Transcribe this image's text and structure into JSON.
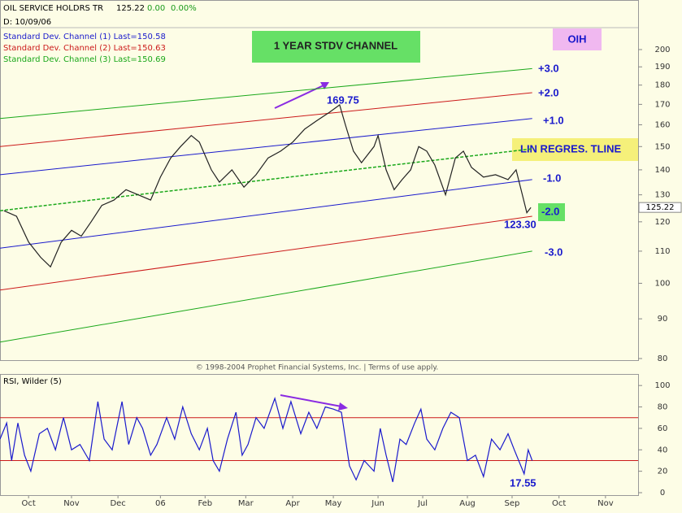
{
  "chart_data": [
    {
      "type": "line",
      "title": "OIL SERVICE HOLDRS TR",
      "last": "125.22",
      "change": "0.00",
      "change_pct": "0.00%",
      "date": "D: 10/09/06",
      "log_scale": true,
      "xlim": [
        -0.14,
        14.14
      ],
      "ylim": [
        80,
        230
      ],
      "yticks": [
        80,
        90,
        100,
        110,
        120,
        130,
        140,
        150,
        160,
        170,
        180,
        190,
        200
      ],
      "last_value": 125.22,
      "series": [
        {
          "color": "#222222",
          "x": [
            -0.05,
            0.23,
            0.5,
            0.77,
            0.99,
            1.23,
            1.46,
            1.68,
            1.9,
            2.14,
            2.41,
            2.68,
            2.95,
            3.23,
            3.45,
            3.68,
            3.9,
            4.14,
            4.32,
            4.59,
            4.77,
            5.05,
            5.32,
            5.59,
            5.86,
            6.14,
            6.41,
            6.68,
            6.95,
            7.23,
            7.46,
            7.59,
            7.77,
            7.95,
            8.23,
            8.32,
            8.5,
            8.68,
            8.86,
            9.05,
            9.23,
            9.41,
            9.59,
            9.83,
            10.05,
            10.23,
            10.41,
            10.68,
            10.95,
            11.23,
            11.41,
            11.55,
            11.65,
            11.74
          ],
          "values": [
            124,
            122,
            113,
            108,
            105,
            113,
            117,
            115,
            120,
            126,
            128,
            132,
            130,
            128,
            137,
            145,
            150,
            155,
            152,
            140,
            135,
            140,
            133,
            138,
            145,
            148,
            152,
            158,
            162,
            166,
            169.75,
            160,
            148,
            143,
            150,
            155,
            140,
            132,
            136,
            140,
            150,
            148,
            142,
            130,
            145,
            148,
            141,
            137,
            138,
            136,
            140,
            130,
            123.3,
            125.22
          ]
        }
      ],
      "channels": [
        {
          "name": "Standard Dev. Channel (1) Last=150.58",
          "color": "#1a1acc",
          "lines": [
            {
              "x": [
                -0.14,
                11.77
              ],
              "values": [
                138,
                163
              ]
            },
            {
              "x": [
                -0.14,
                11.77
              ],
              "values": [
                111,
                136
              ]
            }
          ]
        },
        {
          "name": "Standard Dev. Channel (2) Last=150.63",
          "color": "#cc1a1a",
          "lines": [
            {
              "x": [
                -0.14,
                11.77
              ],
              "values": [
                150,
                176
              ]
            },
            {
              "x": [
                -0.14,
                11.77
              ],
              "values": [
                98,
                122
              ]
            }
          ]
        },
        {
          "name": "Standard Dev. Channel (3) Last=150.69",
          "color": "#1aa81a",
          "lines": [
            {
              "x": [
                -0.14,
                11.77
              ],
              "values": [
                163,
                189
              ]
            },
            {
              "x": [
                -0.14,
                11.77
              ],
              "values": [
                84,
                110
              ]
            },
            {
              "x": [
                -0.14,
                11.77
              ],
              "values": [
                124,
                149
              ]
            }
          ]
        }
      ],
      "annotations": [
        "1 YEAR STDV CHANNEL",
        "OIH",
        "+3.0",
        "+2.0",
        "+1.0",
        "LIN REGRES. TLINE",
        "-1.0",
        "-2.0",
        "-3.0",
        "169.75",
        "123.30"
      ],
      "footer": "© 1998-2004 Prophet Financial Systems, Inc. | Terms of use apply."
    },
    {
      "type": "line",
      "title": "RSI, Wilder (5)",
      "xlim": [
        -0.14,
        14.14
      ],
      "xticks": [
        {
          "value": 0.5,
          "label": "Oct"
        },
        {
          "value": 1.46,
          "label": "Nov"
        },
        {
          "value": 2.5,
          "label": "Dec"
        },
        {
          "value": 3.45,
          "label": "06"
        },
        {
          "value": 4.45,
          "label": "Feb"
        },
        {
          "value": 5.36,
          "label": "Mar"
        },
        {
          "value": 6.41,
          "label": "Apr"
        },
        {
          "value": 7.32,
          "label": "May"
        },
        {
          "value": 8.32,
          "label": "Jun"
        },
        {
          "value": 9.32,
          "label": "Jul"
        },
        {
          "value": 10.32,
          "label": "Aug"
        },
        {
          "value": 11.32,
          "label": "Sep"
        },
        {
          "value": 12.37,
          "label": "Oct"
        },
        {
          "value": 13.41,
          "label": "Nov"
        }
      ],
      "ylim": [
        0,
        110
      ],
      "yticks": [
        0,
        20,
        40,
        60,
        80,
        100
      ],
      "levels": [
        30,
        70
      ],
      "level_color": "#cc1a1a",
      "series": [
        {
          "color": "#1a1acc",
          "x": [
            -0.14,
            0.01,
            0.12,
            0.26,
            0.41,
            0.55,
            0.74,
            0.92,
            1.1,
            1.28,
            1.46,
            1.65,
            1.86,
            2.05,
            2.19,
            2.37,
            2.59,
            2.74,
            2.92,
            3.05,
            3.23,
            3.37,
            3.59,
            3.77,
            3.95,
            4.14,
            4.32,
            4.5,
            4.63,
            4.77,
            4.95,
            5.14,
            5.28,
            5.41,
            5.59,
            5.77,
            6.01,
            6.19,
            6.37,
            6.59,
            6.77,
            6.95,
            7.14,
            7.32,
            7.5,
            7.68,
            7.83,
            8.01,
            8.23,
            8.37,
            8.5,
            8.65,
            8.81,
            8.95,
            9.14,
            9.28,
            9.41,
            9.59,
            9.77,
            9.95,
            10.14,
            10.32,
            10.5,
            10.68,
            10.86,
            11.05,
            11.23,
            11.37,
            11.59,
            11.68,
            11.77
          ],
          "values": [
            50,
            65,
            30,
            65,
            35,
            20,
            55,
            60,
            40,
            70,
            40,
            45,
            30,
            85,
            50,
            40,
            85,
            45,
            70,
            60,
            35,
            45,
            70,
            50,
            80,
            55,
            40,
            60,
            30,
            20,
            50,
            75,
            35,
            45,
            70,
            60,
            88,
            60,
            85,
            55,
            75,
            60,
            80,
            78,
            75,
            25,
            12,
            30,
            20,
            60,
            35,
            10,
            50,
            45,
            65,
            78,
            50,
            40,
            60,
            75,
            70,
            30,
            35,
            15,
            50,
            40,
            55,
            40,
            17.55,
            40,
            30
          ]
        }
      ],
      "annotations": [
        "17.55"
      ]
    }
  ]
}
